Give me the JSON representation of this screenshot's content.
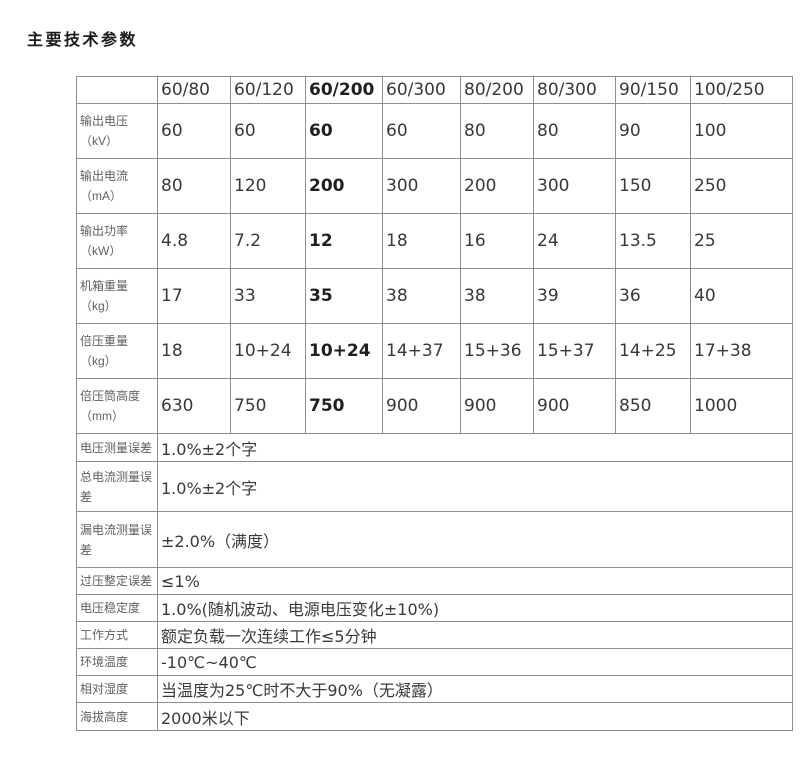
{
  "page": {
    "title": "主要技术参数"
  },
  "colors": {
    "background": "#ffffff",
    "border": "#8e8e8e",
    "title_text": "#1c1c1c",
    "label_text": "#606060",
    "value_text": "#383838",
    "highlight_text": "#1f1f1f"
  },
  "table": {
    "header": {
      "corner": "",
      "models": [
        "60/80",
        "60/120",
        "60/200",
        "60/300",
        "80/200",
        "80/300",
        "90/150",
        "100/250"
      ],
      "highlight_model": "60/200"
    },
    "param_rows": [
      {
        "label": "输出电压",
        "unit": "（kV）",
        "values": [
          "60",
          "60",
          "60",
          "60",
          "80",
          "80",
          "90",
          "100"
        ]
      },
      {
        "label": "输出电流",
        "unit": "（mA）",
        "values": [
          "80",
          "120",
          "200",
          "300",
          "200",
          "300",
          "150",
          "250"
        ]
      },
      {
        "label": "输出功率",
        "unit": "（kW）",
        "values": [
          "4.8",
          "7.2",
          "12",
          "18",
          "16",
          "24",
          "13.5",
          "25"
        ]
      },
      {
        "label": "机箱重量",
        "unit": "（kg）",
        "values": [
          "17",
          "33",
          "35",
          "38",
          "38",
          "39",
          "36",
          "40"
        ]
      },
      {
        "label": "倍压重量",
        "unit": "（kg）",
        "values": [
          "18",
          "10+24",
          "10+24",
          "14+37",
          "15+36",
          "15+37",
          "14+25",
          "17+38"
        ]
      },
      {
        "label": "倍压筒高度",
        "unit": "（mm）",
        "values": [
          "630",
          "750",
          "750",
          "900",
          "900",
          "900",
          "850",
          "1000"
        ]
      }
    ],
    "spec_rows": [
      {
        "label": "电压测量误差",
        "value": "1.0%±2个字"
      },
      {
        "label": "总电流测量误差",
        "value": "1.0%±2个字"
      },
      {
        "label": "漏电流测量误差",
        "value": "±2.0%（满度）"
      },
      {
        "label": "过压整定误差",
        "value": "≤1%"
      },
      {
        "label": "电压稳定度",
        "value": "1.0%(随机波动、电源电压变化±10%)"
      },
      {
        "label": "工作方式",
        "value": "额定负载一次连续工作≤5分钟"
      },
      {
        "label": "环境温度",
        "value": "-10℃~40℃"
      },
      {
        "label": "相对湿度",
        "value": "当温度为25℃时不大于90%（无凝露）"
      },
      {
        "label": "海拔高度",
        "value": "2000米以下"
      }
    ]
  }
}
